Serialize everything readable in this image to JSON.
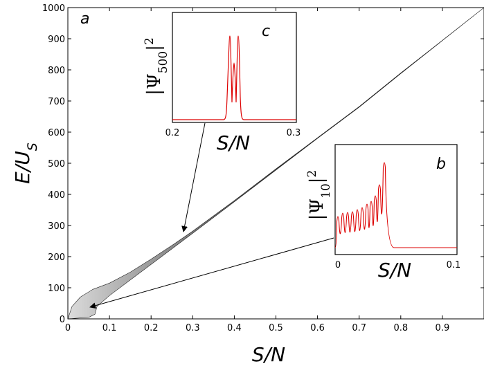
{
  "chart_data": [
    {
      "type": "area",
      "panel_label": "a",
      "xlabel": "S/N",
      "ylabel": "E/U",
      "ylabel_sub": "S",
      "xlim": [
        0,
        1.0
      ],
      "ylim": [
        0,
        1000
      ],
      "xticks": [
        0,
        0.1,
        0.2,
        0.3,
        0.4,
        0.5,
        0.6,
        0.7,
        0.8,
        0.9
      ],
      "xtick_labels": [
        "0",
        "0.1",
        "0.2",
        "0.3",
        "0.4",
        "0.5",
        "0.6",
        "0.7",
        "0.8",
        "0.9"
      ],
      "yticks": [
        0,
        100,
        200,
        300,
        400,
        500,
        600,
        700,
        800,
        900,
        1000
      ],
      "ytick_labels": [
        "0",
        "100",
        "200",
        "300",
        "400",
        "500",
        "600",
        "700",
        "800",
        "900",
        "1000"
      ],
      "band": {
        "upper": [
          [
            0,
            0
          ],
          [
            0.01,
            40
          ],
          [
            0.03,
            70
          ],
          [
            0.06,
            95
          ],
          [
            0.1,
            115
          ],
          [
            0.15,
            150
          ],
          [
            0.2,
            192
          ],
          [
            0.25,
            236
          ],
          [
            0.3,
            282
          ],
          [
            0.4,
            380
          ],
          [
            0.5,
            482
          ],
          [
            0.6,
            582
          ],
          [
            0.7,
            682
          ],
          [
            0.8,
            790
          ],
          [
            0.9,
            895
          ],
          [
            1.0,
            1000
          ]
        ],
        "lower": [
          [
            0,
            0
          ],
          [
            0.02,
            2
          ],
          [
            0.05,
            5
          ],
          [
            0.065,
            15
          ],
          [
            0.07,
            40
          ],
          [
            0.1,
            75
          ],
          [
            0.15,
            125
          ],
          [
            0.2,
            175
          ],
          [
            0.25,
            225
          ],
          [
            0.3,
            275
          ],
          [
            0.4,
            376
          ],
          [
            0.5,
            478
          ],
          [
            0.6,
            580
          ],
          [
            0.7,
            680
          ],
          [
            0.8,
            788
          ],
          [
            0.9,
            894
          ],
          [
            1.0,
            1000
          ]
        ],
        "color": "#555555"
      }
    },
    {
      "type": "line",
      "panel_label": "b",
      "xlabel": "S/N",
      "ylabel": "|Ψ10|²",
      "xlim": [
        0,
        0.1
      ],
      "xticks": [
        0,
        0.1
      ],
      "xtick_labels": [
        "0",
        "0.1"
      ],
      "color": "#dd0000",
      "points_to": [
        0.055,
        50
      ]
    },
    {
      "type": "line",
      "panel_label": "c",
      "xlabel": "S/N",
      "ylabel": "|Ψ500|²",
      "xlim": [
        0.2,
        0.3
      ],
      "xticks": [
        0.2,
        0.3
      ],
      "xtick_labels": [
        "0.2",
        "0.3"
      ],
      "color": "#dd0000",
      "points_to": [
        0.28,
        275
      ]
    }
  ]
}
